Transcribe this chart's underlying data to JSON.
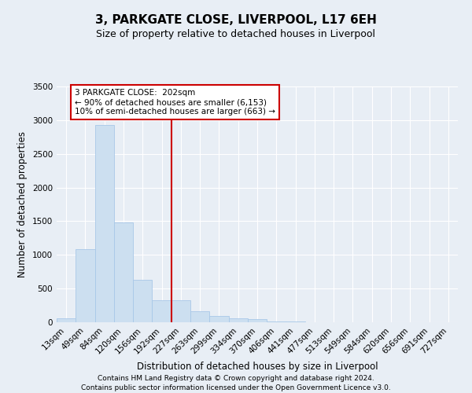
{
  "title": "3, PARKGATE CLOSE, LIVERPOOL, L17 6EH",
  "subtitle": "Size of property relative to detached houses in Liverpool",
  "xlabel": "Distribution of detached houses by size in Liverpool",
  "ylabel": "Number of detached properties",
  "bin_labels": [
    "13sqm",
    "49sqm",
    "84sqm",
    "120sqm",
    "156sqm",
    "192sqm",
    "227sqm",
    "263sqm",
    "299sqm",
    "334sqm",
    "370sqm",
    "406sqm",
    "441sqm",
    "477sqm",
    "513sqm",
    "549sqm",
    "584sqm",
    "620sqm",
    "656sqm",
    "691sqm",
    "727sqm"
  ],
  "bar_heights": [
    60,
    1080,
    2930,
    1480,
    630,
    330,
    330,
    160,
    90,
    55,
    45,
    10,
    10,
    5,
    5,
    0,
    0,
    0,
    0,
    0,
    0
  ],
  "bar_color": "#ccdff0",
  "bar_edge_color": "#a8c8e8",
  "vline_color": "#cc0000",
  "vline_position": 6.0,
  "annotation_text": "3 PARKGATE CLOSE:  202sqm\n← 90% of detached houses are smaller (6,153)\n10% of semi-detached houses are larger (663) →",
  "annotation_box_color": "#ffffff",
  "annotation_box_edge": "#cc0000",
  "ylim": [
    0,
    3500
  ],
  "yticks": [
    0,
    500,
    1000,
    1500,
    2000,
    2500,
    3000,
    3500
  ],
  "footer1": "Contains HM Land Registry data © Crown copyright and database right 2024.",
  "footer2": "Contains public sector information licensed under the Open Government Licence v3.0.",
  "bg_color": "#e8eef5",
  "plot_bg_color": "#e8eef5",
  "grid_color": "#ffffff",
  "title_fontsize": 11,
  "subtitle_fontsize": 9,
  "axis_label_fontsize": 8.5,
  "tick_fontsize": 7.5,
  "annotation_fontsize": 7.5,
  "footer_fontsize": 6.5
}
